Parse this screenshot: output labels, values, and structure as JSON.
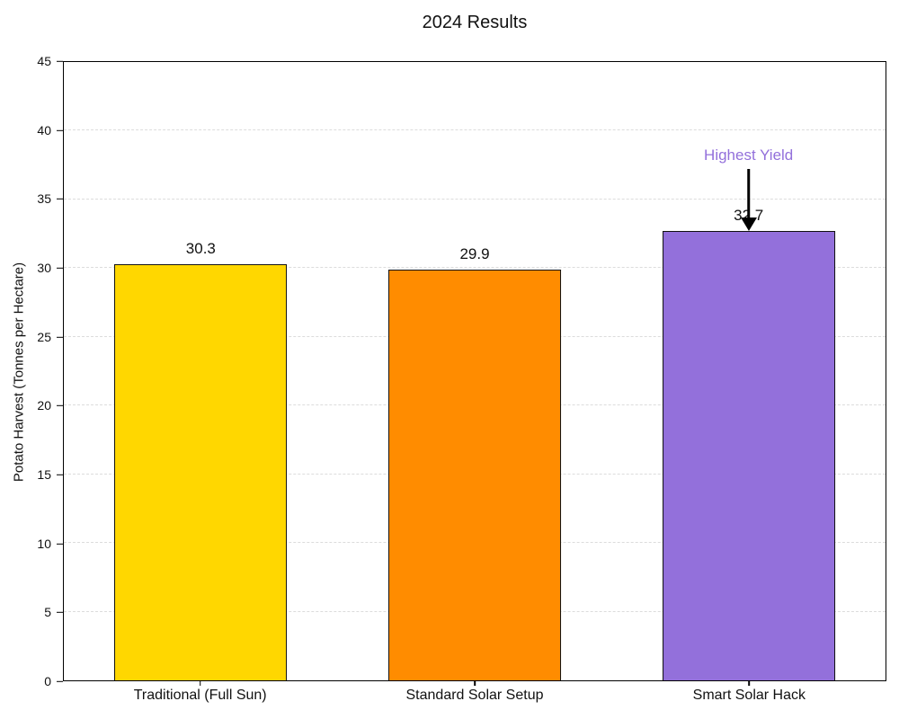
{
  "chart_data": {
    "type": "bar",
    "title": "2024 Results",
    "xlabel": "",
    "ylabel": "Potato Harvest (Tonnes per Hectare)",
    "categories": [
      "Traditional (Full Sun)",
      "Standard Solar Setup",
      "Smart Solar Hack"
    ],
    "values": [
      30.3,
      29.9,
      32.7
    ],
    "value_labels": [
      "30.3",
      "29.9",
      "32.7"
    ],
    "bar_colors": [
      "#FFD700",
      "#FF8C00",
      "#9370DB"
    ],
    "bar_edge_color": "#111111",
    "ylim": [
      0,
      45
    ],
    "yticks": [
      0,
      5,
      10,
      15,
      20,
      25,
      30,
      35,
      40,
      45
    ],
    "grid": {
      "axis": "y",
      "style": "dashed",
      "color": "#dcdcdc"
    },
    "annotation": {
      "text": "Highest Yield",
      "text_color": "#9370DB",
      "arrow_color": "#000000",
      "target_category": "Smart Solar Hack"
    }
  }
}
